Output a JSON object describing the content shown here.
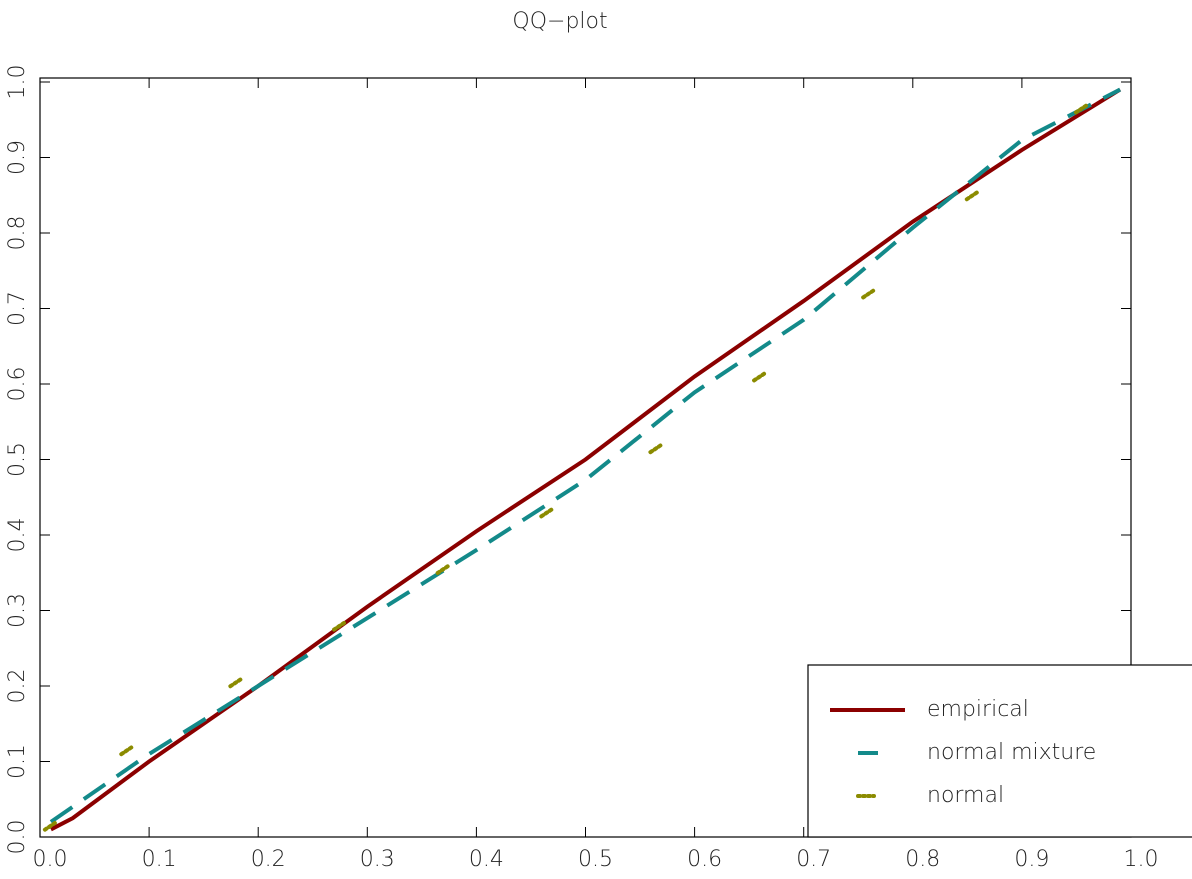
{
  "chart_data": {
    "type": "line",
    "title": "QQ−plot",
    "xlim": [
      0,
      1
    ],
    "ylim": [
      0,
      1
    ],
    "xticks": [
      {
        "value": 0,
        "label": "0.0"
      },
      0.1,
      0.2,
      0.3,
      0.4,
      0.5,
      0.6,
      0.7,
      0.8,
      0.9,
      {
        "value": 1,
        "label": "1.0"
      }
    ],
    "yticks": [
      {
        "value": 0,
        "label": "0.0"
      },
      0.1,
      0.2,
      0.3,
      0.4,
      0.5,
      0.6,
      0.7,
      0.8,
      0.9,
      {
        "value": 1,
        "label": "1.0"
      }
    ],
    "legend": "lower right",
    "series": [
      {
        "name": "empirical",
        "color": "#8b0000",
        "style": "solid",
        "x": [
          0.01,
          0.03,
          0.1,
          0.2,
          0.3,
          0.4,
          0.5,
          0.6,
          0.7,
          0.8,
          0.9,
          0.99
        ],
        "values": [
          0.01,
          0.025,
          0.1,
          0.2,
          0.305,
          0.405,
          0.5,
          0.61,
          0.71,
          0.815,
          0.91,
          0.99
        ]
      },
      {
        "name": "normal mixture",
        "color": "#138a8a",
        "style": "dashed",
        "x": [
          0.01,
          0.1,
          0.2,
          0.3,
          0.4,
          0.5,
          0.6,
          0.7,
          0.8,
          0.9,
          0.99
        ],
        "values": [
          0.02,
          0.11,
          0.2,
          0.29,
          0.38,
          0.473,
          0.589,
          0.685,
          0.807,
          0.923,
          0.99
        ]
      },
      {
        "name": "normal",
        "color": "#8b8b00",
        "style": "dotted",
        "x": [
          0.01,
          0.08,
          0.18,
          0.275,
          0.37,
          0.465,
          0.565,
          0.66,
          0.76,
          0.855,
          0.955
        ],
        "values": [
          0.015,
          0.115,
          0.205,
          0.28,
          0.355,
          0.43,
          0.515,
          0.61,
          0.72,
          0.85,
          0.965
        ]
      }
    ]
  }
}
